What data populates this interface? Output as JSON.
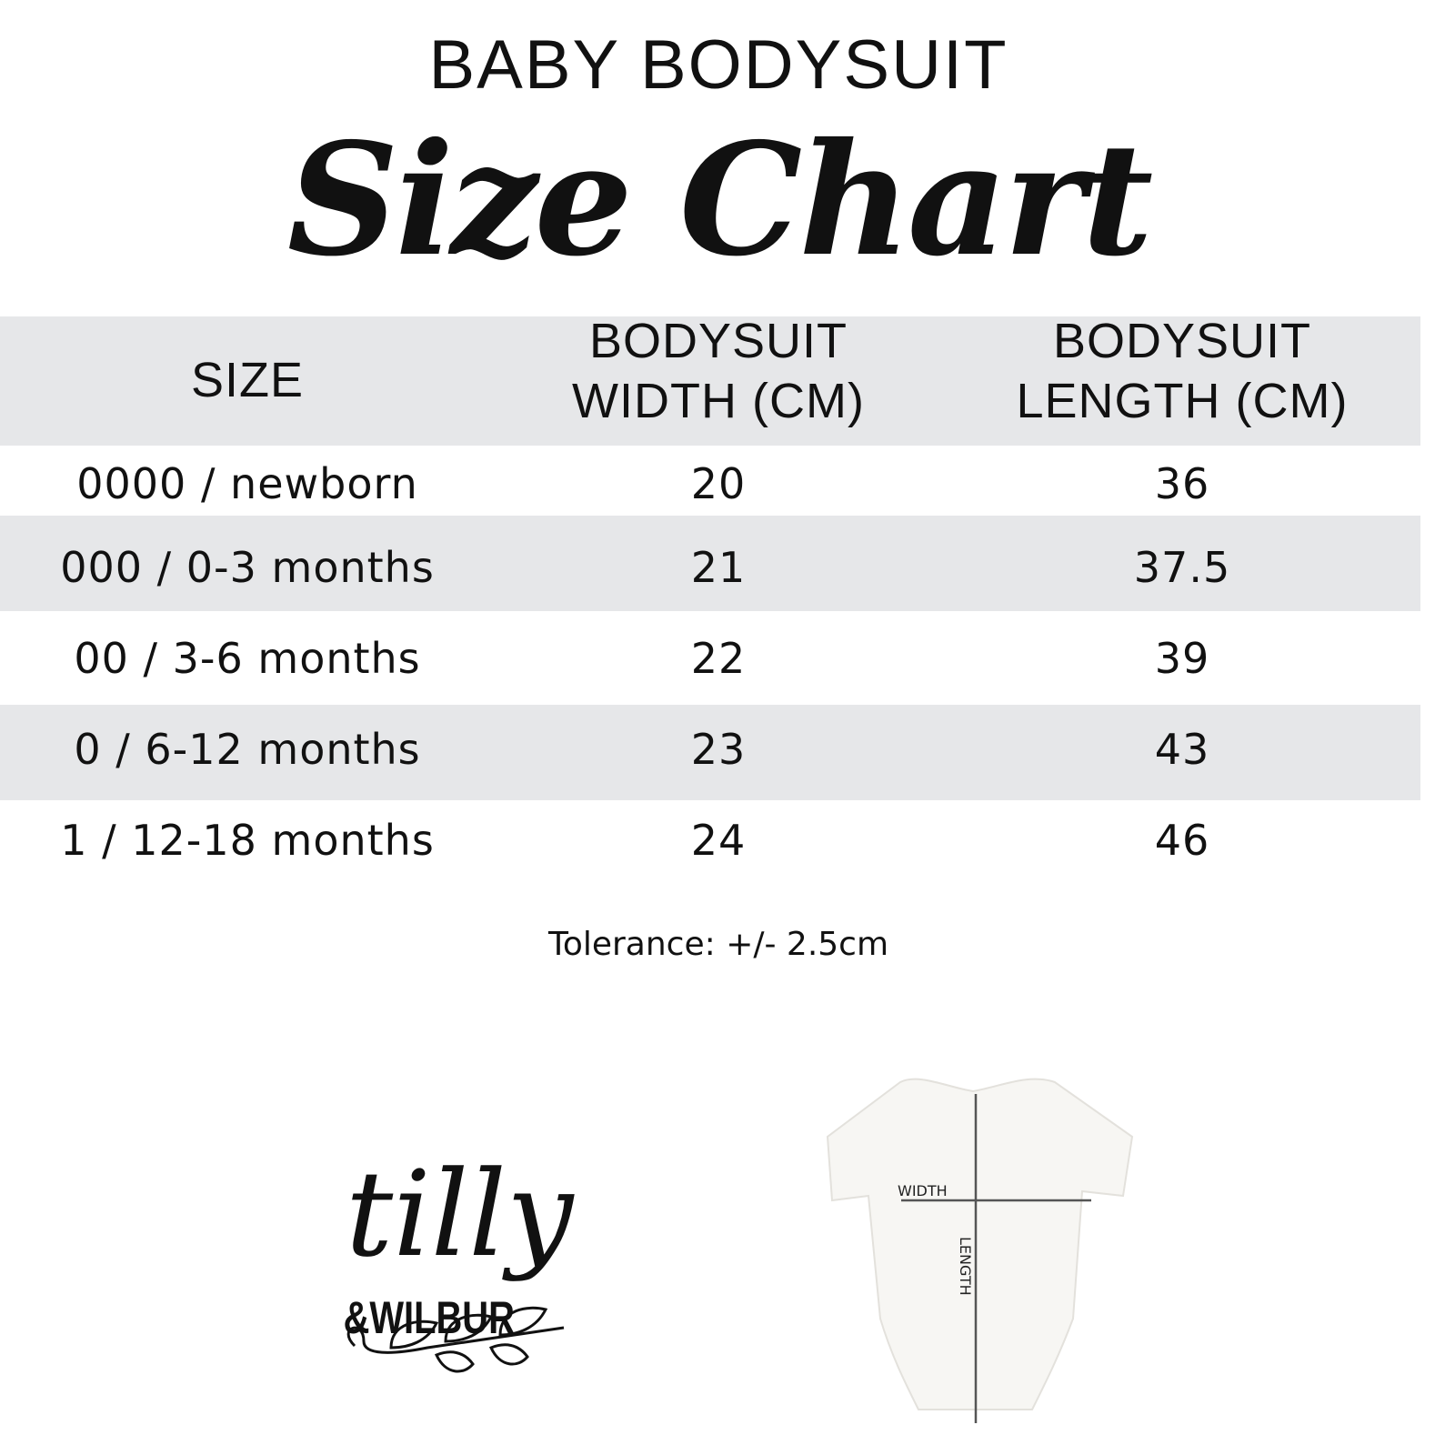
{
  "header": {
    "title": "BABY BODYSUIT",
    "subtitle": "Size Chart"
  },
  "table": {
    "columns": [
      "SIZE",
      "BODYSUIT\nWIDTH (CM)",
      "BODYSUIT\nLENGTH (CM)"
    ],
    "col_lines": [
      [
        "SIZE"
      ],
      [
        "BODYSUIT",
        "WIDTH (CM)"
      ],
      [
        "BODYSUIT",
        "LENGTH (CM)"
      ]
    ],
    "rows": [
      [
        "0000 / newborn",
        "20",
        "36"
      ],
      [
        "000 / 0-3 months",
        "21",
        "37.5"
      ],
      [
        "00 / 3-6 months",
        "22",
        "39"
      ],
      [
        "0 / 6-12 months",
        "23",
        "43"
      ],
      [
        "1 / 12-18 months",
        "24",
        "46"
      ]
    ],
    "band_color": "#e6e7e9"
  },
  "tolerance": "Tolerance: +/- 2.5cm",
  "logo": {
    "line1": "tilly",
    "line2": "&WILBUR"
  },
  "diagram": {
    "width_label": "WIDTH",
    "length_label": "LENGTH"
  }
}
